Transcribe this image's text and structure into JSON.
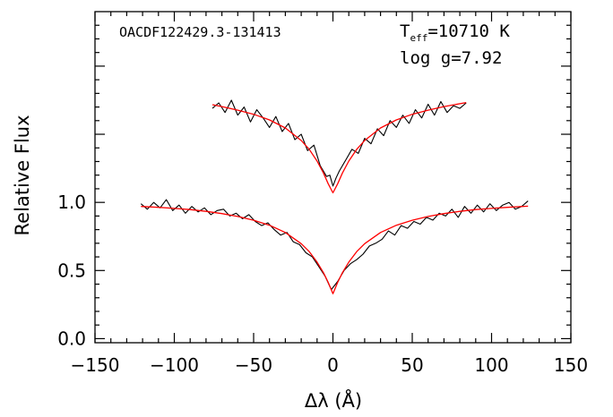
{
  "chart_data": {
    "type": "line",
    "title": "",
    "object_name": "OACDF122429.3-131413",
    "teff_label": "T",
    "teff_sub": "eff",
    "teff_value": "=10710 K",
    "logg_label": "log g=7.92",
    "xlabel": "Δλ (Å)",
    "ylabel": "Relative Flux",
    "xlim": [
      -150,
      150
    ],
    "ylim": [
      -0.03,
      2.4
    ],
    "x_ticks": [
      -150,
      -100,
      -50,
      0,
      50,
      100,
      150
    ],
    "x_tick_labels": [
      "−150",
      "−100",
      "−50",
      "0",
      "50",
      "100",
      "150"
    ],
    "y_ticks": [
      0.0,
      0.5,
      1.0
    ],
    "y_tick_labels": [
      "0.0",
      "0.5",
      "1.0"
    ],
    "series": [
      {
        "role": "observed",
        "color": "#000000",
        "x": [
          -121,
          -117,
          -113,
          -109,
          -105,
          -101,
          -97,
          -93,
          -89,
          -85,
          -81,
          -77,
          -73,
          -69,
          -65,
          -61,
          -57,
          -53,
          -49,
          -45,
          -41,
          -37,
          -33,
          -29,
          -25,
          -21,
          -17,
          -13,
          -9,
          -5,
          -1,
          3,
          7,
          11,
          15,
          19,
          23,
          27,
          31,
          35,
          39,
          43,
          47,
          51,
          55,
          59,
          63,
          67,
          71,
          75,
          79,
          83,
          87,
          91,
          95,
          99,
          103,
          107,
          111,
          115,
          119,
          123
        ],
        "y": [
          0.99,
          0.95,
          1.0,
          0.96,
          1.02,
          0.94,
          0.98,
          0.92,
          0.97,
          0.93,
          0.96,
          0.91,
          0.94,
          0.95,
          0.9,
          0.92,
          0.88,
          0.91,
          0.86,
          0.83,
          0.85,
          0.8,
          0.76,
          0.78,
          0.71,
          0.69,
          0.63,
          0.6,
          0.53,
          0.46,
          0.36,
          0.42,
          0.5,
          0.55,
          0.58,
          0.62,
          0.68,
          0.7,
          0.73,
          0.79,
          0.76,
          0.83,
          0.81,
          0.86,
          0.84,
          0.89,
          0.87,
          0.92,
          0.9,
          0.95,
          0.89,
          0.97,
          0.92,
          0.98,
          0.93,
          0.99,
          0.94,
          0.98,
          1.0,
          0.95,
          0.97,
          1.01
        ]
      },
      {
        "role": "model",
        "color": "#ff0000",
        "x": [
          -121,
          -110,
          -100,
          -90,
          -80,
          -70,
          -60,
          -50,
          -40,
          -30,
          -20,
          -15,
          -10,
          -6,
          -3,
          0,
          3,
          6,
          10,
          15,
          20,
          30,
          40,
          50,
          60,
          70,
          80,
          90,
          100,
          110,
          123
        ],
        "y": [
          0.97,
          0.964,
          0.956,
          0.947,
          0.934,
          0.918,
          0.897,
          0.869,
          0.832,
          0.779,
          0.697,
          0.639,
          0.562,
          0.484,
          0.413,
          0.33,
          0.413,
          0.484,
          0.562,
          0.639,
          0.697,
          0.779,
          0.832,
          0.869,
          0.897,
          0.918,
          0.934,
          0.947,
          0.956,
          0.964,
          0.972
        ]
      },
      {
        "role": "observed",
        "color": "#000000",
        "x": [
          -76,
          -72,
          -68,
          -64,
          -60,
          -56,
          -52,
          -48,
          -44,
          -40,
          -36,
          -32,
          -28,
          -24,
          -20,
          -16,
          -12,
          -8,
          -4,
          -2,
          0,
          2,
          4,
          8,
          12,
          16,
          20,
          24,
          28,
          32,
          36,
          40,
          44,
          48,
          52,
          56,
          60,
          64,
          68,
          72,
          76,
          80,
          84
        ],
        "y": [
          1.69,
          1.73,
          1.66,
          1.75,
          1.64,
          1.7,
          1.59,
          1.68,
          1.62,
          1.55,
          1.63,
          1.52,
          1.58,
          1.46,
          1.5,
          1.38,
          1.42,
          1.27,
          1.19,
          1.2,
          1.12,
          1.18,
          1.23,
          1.31,
          1.39,
          1.36,
          1.47,
          1.43,
          1.54,
          1.49,
          1.6,
          1.55,
          1.64,
          1.58,
          1.68,
          1.62,
          1.72,
          1.64,
          1.74,
          1.66,
          1.71,
          1.69,
          1.73
        ]
      },
      {
        "role": "model",
        "color": "#ff0000",
        "x": [
          -76,
          -70,
          -60,
          -50,
          -40,
          -30,
          -20,
          -15,
          -10,
          -6,
          -3,
          0,
          3,
          6,
          10,
          15,
          20,
          30,
          40,
          50,
          60,
          70,
          84
        ],
        "y": [
          1.717,
          1.703,
          1.677,
          1.647,
          1.605,
          1.546,
          1.454,
          1.39,
          1.303,
          1.216,
          1.137,
          1.07,
          1.137,
          1.216,
          1.303,
          1.39,
          1.454,
          1.546,
          1.605,
          1.647,
          1.677,
          1.703,
          1.733
        ]
      }
    ]
  }
}
